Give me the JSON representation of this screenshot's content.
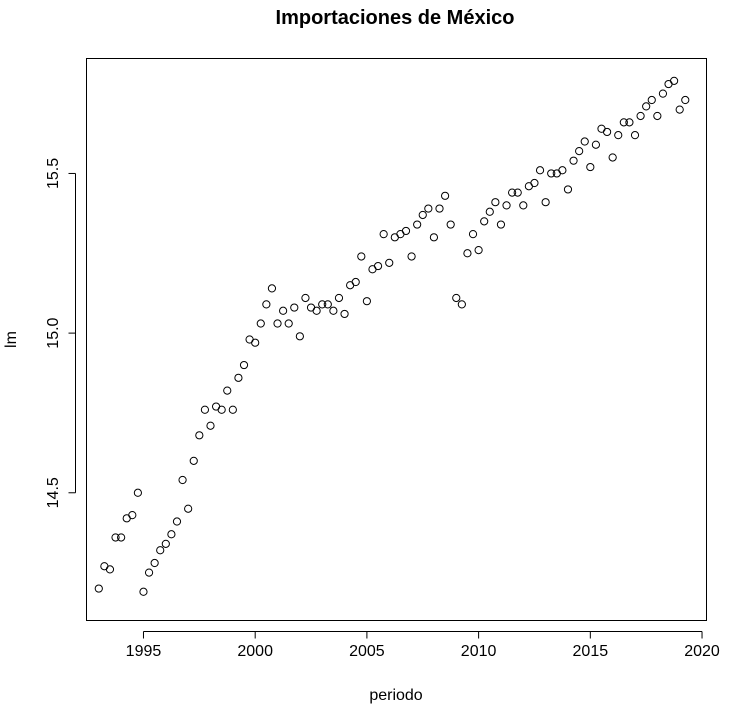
{
  "chart_data": {
    "type": "scatter",
    "title": "Importaciones de México",
    "xlabel": "periodo",
    "ylabel": "lm",
    "xlim": [
      1992.45,
      2020.2
    ],
    "ylim": [
      14.1,
      15.86
    ],
    "x_ticks": [
      1995,
      2000,
      2005,
      2010,
      2015,
      2020
    ],
    "y_ticks": [
      14.5,
      15.0,
      15.5
    ],
    "x_tick_labels": [
      "1995",
      "2000",
      "2005",
      "2010",
      "2015",
      "2020"
    ],
    "y_tick_labels": [
      "14.5",
      "15.0",
      "15.5"
    ],
    "grid": false,
    "marker": "open-circle",
    "x": [
      1993.0,
      1993.25,
      1993.5,
      1993.75,
      1994.0,
      1994.25,
      1994.5,
      1994.75,
      1995.0,
      1995.25,
      1995.5,
      1995.75,
      1996.0,
      1996.25,
      1996.5,
      1996.75,
      1997.0,
      1997.25,
      1997.5,
      1997.75,
      1998.0,
      1998.25,
      1998.5,
      1998.75,
      1999.0,
      1999.25,
      1999.5,
      1999.75,
      2000.0,
      2000.25,
      2000.5,
      2000.75,
      2001.0,
      2001.25,
      2001.5,
      2001.75,
      2002.0,
      2002.25,
      2002.5,
      2002.75,
      2003.0,
      2003.25,
      2003.5,
      2003.75,
      2004.0,
      2004.25,
      2004.5,
      2004.75,
      2005.0,
      2005.25,
      2005.5,
      2005.75,
      2006.0,
      2006.25,
      2006.5,
      2006.75,
      2007.0,
      2007.25,
      2007.5,
      2007.75,
      2008.0,
      2008.25,
      2008.5,
      2008.75,
      2009.0,
      2009.25,
      2009.5,
      2009.75,
      2010.0,
      2010.25,
      2010.5,
      2010.75,
      2011.0,
      2011.25,
      2011.5,
      2011.75,
      2012.0,
      2012.25,
      2012.5,
      2012.75,
      2013.0,
      2013.25,
      2013.5,
      2013.75,
      2014.0,
      2014.25,
      2014.5,
      2014.75,
      2015.0,
      2015.25,
      2015.5,
      2015.75,
      2016.0,
      2016.25,
      2016.5,
      2016.75,
      2017.0,
      2017.25,
      2017.5,
      2017.75,
      2018.0,
      2018.25,
      2018.5,
      2018.75,
      2019.0,
      2019.25
    ],
    "y": [
      14.2,
      14.27,
      14.26,
      14.36,
      14.36,
      14.42,
      14.43,
      14.5,
      14.19,
      14.25,
      14.28,
      14.32,
      14.34,
      14.37,
      14.41,
      14.54,
      14.45,
      14.6,
      14.68,
      14.76,
      14.71,
      14.77,
      14.76,
      14.82,
      14.76,
      14.86,
      14.9,
      14.98,
      14.97,
      15.03,
      15.09,
      15.14,
      15.03,
      15.07,
      15.03,
      15.08,
      14.99,
      15.11,
      15.08,
      15.07,
      15.09,
      15.09,
      15.07,
      15.11,
      15.06,
      15.15,
      15.16,
      15.24,
      15.1,
      15.2,
      15.21,
      15.31,
      15.22,
      15.3,
      15.31,
      15.32,
      15.24,
      15.34,
      15.37,
      15.39,
      15.3,
      15.39,
      15.43,
      15.34,
      15.11,
      15.09,
      15.25,
      15.31,
      15.26,
      15.35,
      15.38,
      15.41,
      15.34,
      15.4,
      15.44,
      15.44,
      15.4,
      15.46,
      15.47,
      15.51,
      15.41,
      15.5,
      15.5,
      15.51,
      15.45,
      15.54,
      15.57,
      15.6,
      15.52,
      15.59,
      15.64,
      15.63,
      15.55,
      15.62,
      15.66,
      15.66,
      15.62,
      15.68,
      15.71,
      15.73,
      15.68,
      15.75,
      15.78,
      15.79,
      15.7,
      15.73
    ]
  }
}
